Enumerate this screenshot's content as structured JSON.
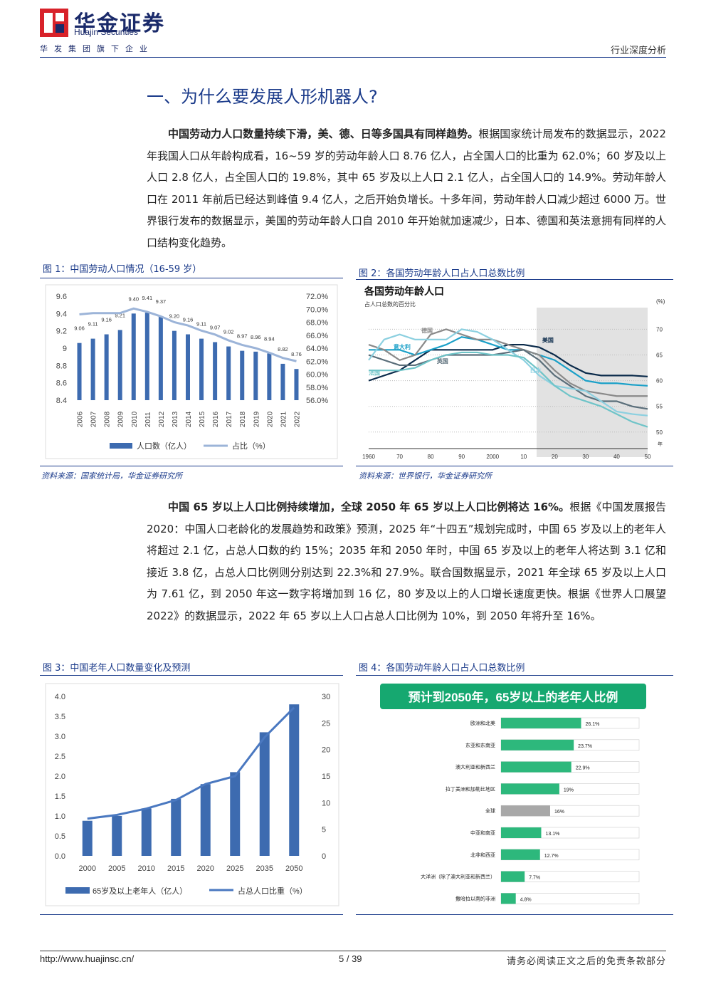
{
  "header": {
    "brand_cn": "华金证券",
    "brand_en": "Huajin Securities",
    "brand_sub": "华发集团旗下企业",
    "report_type": "行业深度分析"
  },
  "section": {
    "title": "一、为什么要发展人形机器人?"
  },
  "para1": {
    "bold": "中国劳动力人口数量持续下滑，美、德、日等多国具有同样趋势。",
    "text": "根据国家统计局发布的数据显示，2022 年我国人口从年龄构成看，16~59 岁的劳动年龄人口 8.76 亿人，占全国人口的比重为 62.0%；60 岁及以上人口 2.8 亿人，占全国人口的 19.8%，其中 65 岁及以上人口 2.1 亿人，占全国人口的 14.9%。劳动年龄人口在 2011 年前后已经达到峰值 9.4 亿人，之后开始负增长。十多年间，劳动年龄人口减少超过 6000 万。世界银行发布的数据显示，美国的劳动年龄人口自 2010 年开始就加速减少，日本、德国和英法意拥有同样的人口结构变化趋势。"
  },
  "para2": {
    "bold": "中国 65 岁以上人口比例持续增加，全球 2050 年 65 岁以上人口比例将达 16%。",
    "text": "根据《中国发展报告 2020：中国人口老龄化的发展趋势和政策》预测，2025 年“十四五”规划完成时，中国 65 岁及以上的老年人将超过 2.1 亿，占总人口数的约 15%；2035 年和 2050 年时，中国 65 岁及以上的老年人将达到 3.1 亿和接近 3.8 亿，占总人口比例则分别达到 22.3%和 27.9%。联合国数据显示，2021 年全球 65 岁及以上人口为 7.61 亿，到 2050 年这一数字将增加到 16 亿，80 岁及以上的人口增长速度更快。根据《世界人口展望 2022》的数据显示，2022 年 65 岁以上人口占总人口比例为 10%，到 2050 年将升至 16%。"
  },
  "fig1": {
    "title": "图 1：中国劳动人口情况（16-59 岁）",
    "source": "资料来源：国家统计局，华金证券研究所"
  },
  "fig2": {
    "title": "图 2：各国劳动年龄人口占人口总数比例",
    "source": "资料来源：世界银行，华金证券研究所"
  },
  "fig3": {
    "title": "图 3：中国老年人口数量变化及预测"
  },
  "fig4": {
    "title": "图 4：各国劳动年龄人口占人口总数比例"
  },
  "footer": {
    "url": "http://www.huajinsc.cn/",
    "page": "5 / 39",
    "disclaimer": "请务必阅读正文之后的免责条款部分"
  },
  "chart_data": [
    {
      "type": "bar",
      "categories": [
        "2006",
        "2007",
        "2008",
        "2009",
        "2010",
        "2011",
        "2012",
        "2013",
        "2014",
        "2015",
        "2016",
        "2017",
        "2018",
        "2019",
        "2020",
        "2021",
        "2022"
      ],
      "series": [
        {
          "name": "人口数（亿人）",
          "type": "bar",
          "axis": "left",
          "values": [
            9.06,
            9.11,
            9.16,
            9.21,
            9.4,
            9.41,
            9.37,
            9.2,
            9.16,
            9.11,
            9.07,
            9.02,
            8.97,
            8.96,
            8.94,
            8.82,
            8.76
          ],
          "labels": [
            "9.06",
            "9.11",
            "9.16",
            "9.21",
            "9.40",
            "9.41",
            "9.37",
            "9.20",
            "9.16",
            "9.11",
            "9.07",
            "9.02",
            "8.97",
            "8.96",
            "8.94",
            "8.82",
            "8.76"
          ]
        },
        {
          "name": "占比（%）",
          "type": "line",
          "axis": "right",
          "values": [
            69.2,
            69.4,
            69.4,
            69.4,
            70.1,
            69.6,
            68.9,
            68.0,
            67.5,
            66.7,
            66.1,
            65.2,
            64.5,
            64.0,
            63.3,
            62.5,
            62.0
          ]
        }
      ],
      "ylim": [
        8.4,
        9.6
      ],
      "yticks": [
        "9.6",
        "9.4",
        "9.2",
        "9",
        "8.8",
        "8.6",
        "8.4"
      ],
      "y2lim": [
        56,
        72
      ],
      "y2ticks": [
        "72.0%",
        "70.0%",
        "68.0%",
        "66.0%",
        "64.0%",
        "62.0%",
        "60.0%",
        "58.0%",
        "56.0%"
      ],
      "legend_position": "bottom"
    },
    {
      "type": "line",
      "title": "各国劳动年龄人口",
      "subtitle": "占人口总数的百分比",
      "x_ticks": [
        "1960",
        "70",
        "80",
        "90",
        "2000",
        "10",
        "20",
        "30",
        "40",
        "50"
      ],
      "y_ticks": [
        "70",
        "65",
        "60",
        "55",
        "50"
      ],
      "y_unit": "(%)",
      "ylim": [
        49,
        72
      ],
      "x_end_label": "年",
      "series": [
        {
          "name": "美国",
          "color": "#0a2a4a",
          "x": [
            1960,
            1965,
            1970,
            1975,
            1980,
            1985,
            1990,
            1995,
            2000,
            2005,
            2010,
            2015,
            2020,
            2025,
            2030,
            2035,
            2040,
            2045,
            2050
          ],
          "values": [
            60,
            61,
            62,
            64,
            66,
            66,
            66,
            66,
            66,
            67,
            67,
            66.5,
            65,
            63,
            61.5,
            61,
            61,
            61,
            60.8
          ]
        },
        {
          "name": "意大利",
          "color": "#1aa0c8",
          "x": [
            1960,
            1965,
            1970,
            1975,
            1980,
            1985,
            1990,
            1995,
            2000,
            2005,
            2010,
            2015,
            2020,
            2025,
            2030,
            2035,
            2040,
            2045,
            2050
          ],
          "values": [
            66,
            66,
            66,
            65,
            66,
            67,
            68.5,
            68,
            67,
            66,
            66,
            65,
            64,
            62,
            60,
            59.5,
            59.5,
            59.2,
            59
          ]
        },
        {
          "name": "德国",
          "color": "#8a8a8a",
          "x": [
            1960,
            1965,
            1970,
            1975,
            1980,
            1985,
            1990,
            1995,
            2000,
            2005,
            2010,
            2015,
            2020,
            2025,
            2030,
            2035,
            2040,
            2045,
            2050
          ],
          "values": [
            67,
            66,
            64,
            65,
            69,
            70,
            69,
            68,
            68,
            67,
            66,
            65,
            62,
            59.5,
            58,
            57.5,
            57,
            57,
            57
          ]
        },
        {
          "name": "英国",
          "color": "#5a6e7a",
          "x": [
            1960,
            1965,
            1970,
            1975,
            1980,
            1985,
            1990,
            1995,
            2000,
            2005,
            2010,
            2015,
            2020,
            2025,
            2030,
            2035,
            2040,
            2045,
            2050
          ],
          "values": [
            65,
            64,
            63,
            63,
            64,
            65,
            65,
            65,
            65,
            65.5,
            66,
            64,
            61,
            59,
            57,
            56,
            56,
            55,
            54.5
          ]
        },
        {
          "name": "日本",
          "color": "#8cd0e0",
          "x": [
            1960,
            1965,
            1970,
            1975,
            1980,
            1985,
            1990,
            1995,
            2000,
            2005,
            2010,
            2015,
            2020,
            2025,
            2030,
            2035,
            2040,
            2045,
            2050
          ],
          "values": [
            64,
            68,
            69,
            68,
            68,
            68,
            70,
            69.5,
            68,
            66,
            64,
            61,
            59,
            58.5,
            58,
            56,
            54,
            53.5,
            53.2
          ]
        },
        {
          "name": "法国",
          "color": "#6fc4c8",
          "x": [
            1960,
            1965,
            1970,
            1975,
            1980,
            1985,
            1990,
            1995,
            2000,
            2005,
            2010,
            2015,
            2020,
            2025,
            2030,
            2035,
            2040,
            2045,
            2050
          ],
          "values": [
            62,
            62,
            62,
            62.5,
            64,
            65,
            65.5,
            65.5,
            65,
            65,
            64.5,
            62,
            59,
            57,
            56,
            55,
            53.5,
            52,
            51
          ]
        }
      ],
      "shaded_region": [
        2015,
        2050
      ]
    },
    {
      "type": "bar",
      "categories": [
        "2000",
        "2005",
        "2010",
        "2015",
        "2020",
        "2025",
        "2035",
        "2050"
      ],
      "series": [
        {
          "name": "65岁及以上老年人（亿人）",
          "type": "bar",
          "axis": "left",
          "values": [
            0.88,
            1.0,
            1.19,
            1.43,
            1.8,
            2.1,
            3.1,
            3.8
          ]
        },
        {
          "name": "占总人口比重（%）",
          "type": "line",
          "axis": "right",
          "values": [
            7.0,
            7.7,
            8.9,
            10.5,
            13.5,
            15.0,
            22.3,
            27.9
          ]
        }
      ],
      "ylim": [
        0,
        4
      ],
      "yticks": [
        "4.0",
        "3.5",
        "3.0",
        "2.5",
        "2.0",
        "1.5",
        "1.0",
        "0.5",
        "0.0"
      ],
      "y2lim": [
        0,
        30
      ],
      "y2ticks": [
        "30",
        "25",
        "20",
        "15",
        "10",
        "5",
        "0"
      ],
      "legend_position": "bottom"
    },
    {
      "type": "bar",
      "orientation": "horizontal",
      "title": "预计到2050年，65岁以上的老年人比例",
      "categories": [
        "欧洲和北美",
        "东亚和东南亚",
        "澳大利亚和新西兰",
        "拉丁美洲和加勒比地区",
        "全球",
        "中亚和南亚",
        "北非和西亚",
        "大洋洲（除了澳大利亚和新西兰）",
        "撒哈拉以南的非洲"
      ],
      "values": [
        26.1,
        23.7,
        22.9,
        19,
        16,
        13.1,
        12.7,
        7.7,
        4.8
      ],
      "labels": [
        "26.1%",
        "23.7%",
        "22.9%",
        "19%",
        "16%",
        "13.1%",
        "12.7%",
        "7.7%",
        "4.8%"
      ],
      "highlight_index": 4,
      "colors": {
        "bar": "#2db87c",
        "highlight": "#a8a8a8",
        "header": "#16a870"
      },
      "xlim": [
        0,
        45
      ]
    }
  ]
}
